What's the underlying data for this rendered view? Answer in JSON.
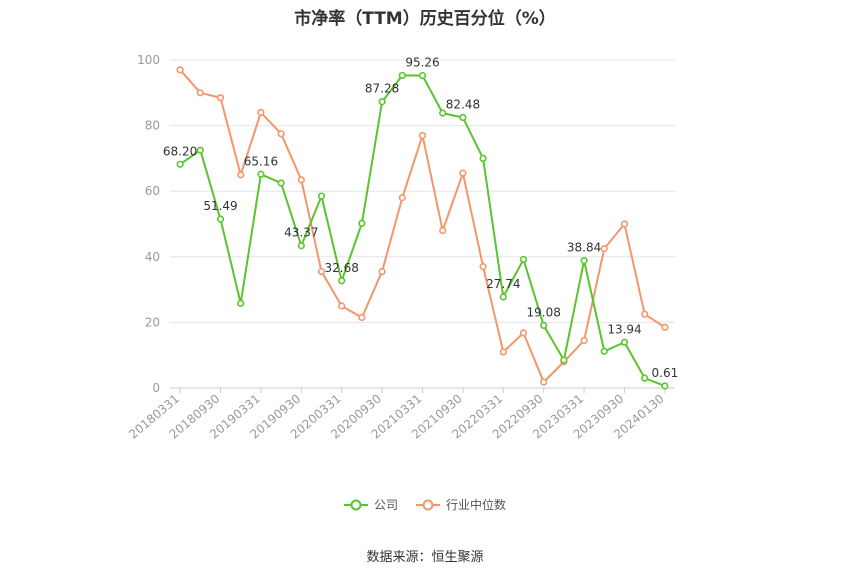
{
  "title": "市净率（TTM）历史百分位（%）",
  "source": "数据来源：恒生聚源",
  "colors": {
    "company": "#5ac42e",
    "industry": "#f4956a",
    "grid": "#e6e6e6",
    "axis": "#999999"
  },
  "chart_data": {
    "type": "line",
    "title": "市净率（TTM）历史百分位（%）",
    "ylim": [
      0,
      100
    ],
    "yticks": [
      0,
      20,
      40,
      60,
      80,
      100
    ],
    "x": [
      "20180331",
      "20180630",
      "20180930",
      "20181231",
      "20190331",
      "20190630",
      "20190930",
      "20191231",
      "20200331",
      "20200630",
      "20200930",
      "20201231",
      "20210331",
      "20210630",
      "20210930",
      "20211231",
      "20220331",
      "20220630",
      "20220930",
      "20221231",
      "20230331",
      "20230630",
      "20230930",
      "20231231",
      "20240130"
    ],
    "xtick_labels": [
      "20180331",
      "20180930",
      "20190331",
      "20190930",
      "20200331",
      "20200930",
      "20210331",
      "20210930",
      "20220331",
      "20220930",
      "20230331",
      "20230930",
      "20240130"
    ],
    "grid": true,
    "legend_position": "bottom",
    "series": [
      {
        "name": "公司",
        "color": "#5ac42e",
        "values": [
          68.2,
          72.5,
          51.49,
          25.8,
          65.16,
          62.5,
          43.37,
          58.5,
          32.68,
          50.2,
          87.28,
          95.3,
          95.26,
          83.8,
          82.48,
          70.0,
          27.74,
          39.2,
          19.08,
          8.5,
          38.84,
          11.2,
          13.94,
          3.0,
          0.61
        ],
        "labels": [
          "68.20",
          null,
          "51.49",
          null,
          "65.16",
          null,
          "43.37",
          null,
          "32.68",
          null,
          "87.28",
          null,
          "95.26",
          null,
          "82.48",
          null,
          "27.74",
          null,
          "19.08",
          null,
          "38.84",
          null,
          "13.94",
          null,
          "0.61"
        ]
      },
      {
        "name": "行业中位数",
        "color": "#f4956a",
        "values": [
          97.0,
          90.0,
          88.5,
          65.0,
          84.0,
          77.5,
          63.5,
          35.5,
          25.0,
          21.5,
          35.5,
          58.0,
          77.0,
          48.0,
          65.5,
          37.0,
          11.0,
          16.8,
          1.8,
          8.0,
          14.5,
          42.5,
          50.0,
          22.5,
          18.5
        ]
      }
    ]
  }
}
